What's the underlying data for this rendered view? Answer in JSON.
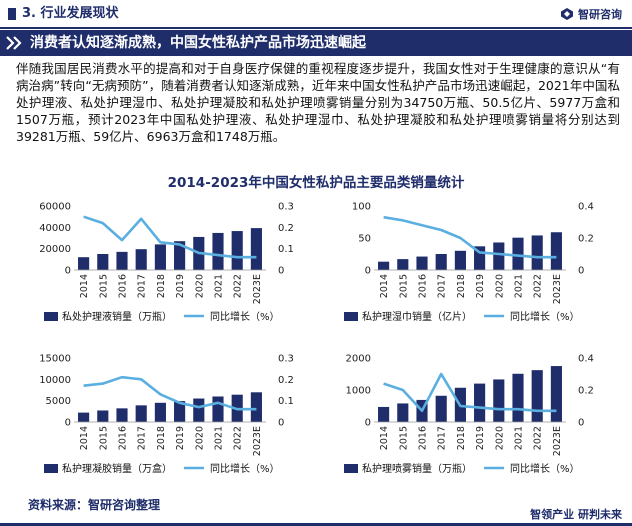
{
  "header": {
    "section_title": "3. 行业发展现状",
    "logo_text": "智研咨询",
    "banner_title": "消费者认知逐渐成熟，中国女性私护产品市场迅速崛起"
  },
  "paragraph": "伴随我国居民消费水平的提高和对于自身医疗保健的重视程度逐步提升，我国女性对于生理健康的意识从“有病治病”转向“无病预防”，随着消费者认知逐渐成熟，近年来中国女性私护产品市场迅速崛起，2021年中国私处护理液、私处护理湿巾、私处护理凝胶和私处护理喷雾销量分别为34750万瓶、50.5亿片、5977万盒和1507万瓶，预计2023年中国私处护理液、私处护理湿巾、私处护理凝胶和私处护理喷雾销量将分别达到39281万瓶、59亿片、6963万盒和1748万瓶。",
  "chart_section_title": "2014-2023年中国女性私护品主要品类销量统计",
  "footer": {
    "source": "资料来源：智研咨询整理",
    "slogan": "智领产业 研判未来"
  },
  "colors": {
    "navy": "#1f2d6b",
    "bar": "#1f2d6b",
    "line": "#5aafe0"
  },
  "chart_data": [
    {
      "type": "bar+line",
      "categories": [
        "2014",
        "2015",
        "2016",
        "2017",
        "2018",
        "2019",
        "2020",
        "2021",
        "2022",
        "2023E"
      ],
      "series": [
        {
          "name": "私处护理液销量（万瓶）",
          "type": "bar",
          "axis": "left",
          "values": [
            12000,
            15000,
            17000,
            19500,
            24000,
            27000,
            31000,
            34750,
            36500,
            39281
          ]
        },
        {
          "name": "同比增长（%）",
          "type": "line",
          "axis": "right",
          "values": [
            0.25,
            0.22,
            0.14,
            0.24,
            0.13,
            0.12,
            0.08,
            0.07,
            0.06,
            0.06
          ]
        }
      ],
      "left_axis": {
        "min": 0,
        "max": 60000,
        "ticks": [
          "0",
          "20000",
          "40000",
          "60000"
        ]
      },
      "right_axis": {
        "min": 0,
        "max": 0.3,
        "ticks": [
          "0",
          "0.1",
          "0.2",
          "0.3"
        ]
      }
    },
    {
      "type": "bar+line",
      "categories": [
        "2014",
        "2015",
        "2016",
        "2017",
        "2018",
        "2019",
        "2020",
        "2021",
        "2022",
        "2023E"
      ],
      "series": [
        {
          "name": "私护理湿巾销量（亿片）",
          "type": "bar",
          "axis": "left",
          "values": [
            13,
            17,
            21,
            25,
            30,
            37,
            43,
            50.5,
            54,
            59
          ]
        },
        {
          "name": "同比增长（%）",
          "type": "line",
          "axis": "right",
          "values": [
            0.33,
            0.31,
            0.28,
            0.25,
            0.2,
            0.11,
            0.1,
            0.09,
            0.08,
            0.08
          ]
        }
      ],
      "left_axis": {
        "min": 0,
        "max": 100,
        "ticks": [
          "0",
          "50",
          "100"
        ]
      },
      "right_axis": {
        "min": 0,
        "max": 0.4,
        "ticks": [
          "0",
          "0.2",
          "0.4"
        ]
      }
    },
    {
      "type": "bar+line",
      "categories": [
        "2014",
        "2015",
        "2016",
        "2017",
        "2018",
        "2019",
        "2020",
        "2021",
        "2022",
        "2023E"
      ],
      "series": [
        {
          "name": "私护理凝胶销量（万盒）",
          "type": "bar",
          "axis": "left",
          "values": [
            2200,
            2700,
            3200,
            3900,
            4500,
            4900,
            5500,
            5977,
            6400,
            6963
          ]
        },
        {
          "name": "同比增长（%）",
          "type": "line",
          "axis": "right",
          "values": [
            0.17,
            0.18,
            0.21,
            0.2,
            0.13,
            0.09,
            0.07,
            0.09,
            0.06,
            0.06
          ]
        }
      ],
      "left_axis": {
        "min": 0,
        "max": 15000,
        "ticks": [
          "0",
          "5000",
          "10000",
          "15000"
        ]
      },
      "right_axis": {
        "min": 0,
        "max": 0.3,
        "ticks": [
          "0",
          "0.1",
          "0.2",
          "0.3"
        ]
      }
    },
    {
      "type": "bar+line",
      "categories": [
        "2014",
        "2015",
        "2016",
        "2017",
        "2018",
        "2019",
        "2020",
        "2021",
        "2022",
        "2023E"
      ],
      "series": [
        {
          "name": "私护理喷雾销量（万瓶）",
          "type": "bar",
          "axis": "left",
          "values": [
            470,
            580,
            690,
            820,
            1070,
            1200,
            1330,
            1507,
            1620,
            1748
          ]
        },
        {
          "name": "同比增长（%）",
          "type": "line",
          "axis": "right",
          "values": [
            0.24,
            0.2,
            0.07,
            0.3,
            0.1,
            0.09,
            0.08,
            0.08,
            0.07,
            0.07
          ]
        }
      ],
      "left_axis": {
        "min": 0,
        "max": 2000,
        "ticks": [
          "0",
          "1000",
          "2000"
        ]
      },
      "right_axis": {
        "min": 0,
        "max": 0.4,
        "ticks": [
          "0",
          "0.2",
          "0.4"
        ]
      }
    }
  ]
}
